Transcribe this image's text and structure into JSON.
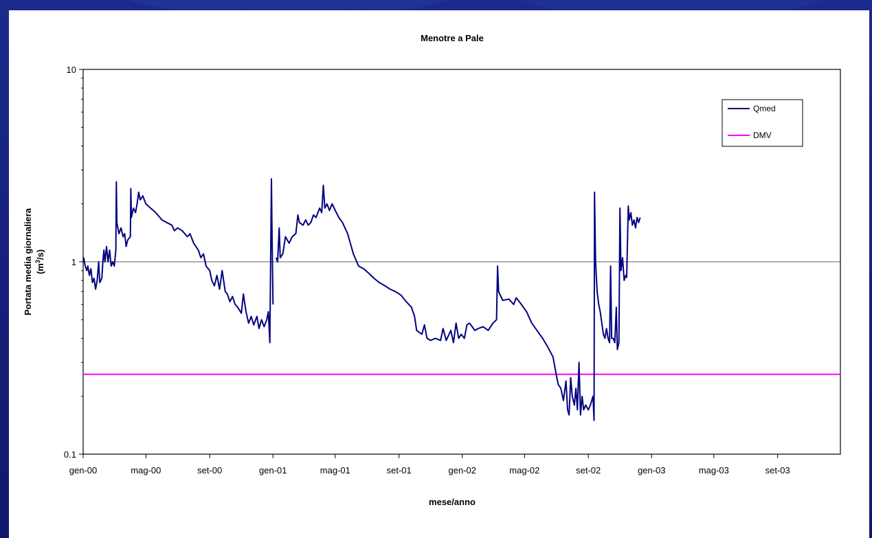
{
  "chart_data": {
    "type": "line",
    "title": "Menotre a Pale",
    "xlabel": "mese/anno",
    "ylabel_line1": "Portata media giornaliera",
    "ylabel_line2": "(m3/s)",
    "y_scale": "log",
    "ylim": [
      0.1,
      10
    ],
    "y_ticks": [
      {
        "value": 0.1,
        "label": "0.1"
      },
      {
        "value": 1,
        "label": "1"
      },
      {
        "value": 10,
        "label": "10"
      }
    ],
    "xlim": [
      "2000-01-01",
      "2003-12-31"
    ],
    "x_ticks": [
      {
        "date": "2000-01-01",
        "label": "gen-00"
      },
      {
        "date": "2000-05-01",
        "label": "mag-00"
      },
      {
        "date": "2000-09-01",
        "label": "set-00"
      },
      {
        "date": "2001-01-01",
        "label": "gen-01"
      },
      {
        "date": "2001-05-01",
        "label": "mag-01"
      },
      {
        "date": "2001-09-01",
        "label": "set-01"
      },
      {
        "date": "2002-01-01",
        "label": "gen-02"
      },
      {
        "date": "2002-05-01",
        "label": "mag-02"
      },
      {
        "date": "2002-09-01",
        "label": "set-02"
      },
      {
        "date": "2003-01-01",
        "label": "gen-03"
      },
      {
        "date": "2003-05-01",
        "label": "mag-03"
      },
      {
        "date": "2003-09-01",
        "label": "set-03"
      }
    ],
    "grid": "horizontal gridline at 1",
    "legend_position": "top-right",
    "series": [
      {
        "name": "Qmed",
        "color": "#000080",
        "points": [
          [
            "2000-01-01",
            1.0
          ],
          [
            "2000-01-02",
            1.05
          ],
          [
            "2000-01-05",
            0.95
          ],
          [
            "2000-01-08",
            0.9
          ],
          [
            "2000-01-10",
            0.95
          ],
          [
            "2000-01-13",
            0.85
          ],
          [
            "2000-01-16",
            0.92
          ],
          [
            "2000-01-19",
            0.78
          ],
          [
            "2000-01-22",
            0.82
          ],
          [
            "2000-01-25",
            0.72
          ],
          [
            "2000-01-28",
            0.8
          ],
          [
            "2000-01-31",
            1.0
          ],
          [
            "2000-02-02",
            0.78
          ],
          [
            "2000-02-06",
            0.82
          ],
          [
            "2000-02-08",
            1.0
          ],
          [
            "2000-02-10",
            1.15
          ],
          [
            "2000-02-12",
            1.0
          ],
          [
            "2000-02-15",
            1.2
          ],
          [
            "2000-02-18",
            1.0
          ],
          [
            "2000-02-21",
            1.15
          ],
          [
            "2000-02-24",
            0.95
          ],
          [
            "2000-02-27",
            1.0
          ],
          [
            "2000-03-01",
            0.95
          ],
          [
            "2000-03-04",
            1.15
          ],
          [
            "2000-03-05",
            2.6
          ],
          [
            "2000-03-06",
            1.6
          ],
          [
            "2000-03-10",
            1.4
          ],
          [
            "2000-03-14",
            1.5
          ],
          [
            "2000-03-18",
            1.35
          ],
          [
            "2000-03-21",
            1.4
          ],
          [
            "2000-03-24",
            1.2
          ],
          [
            "2000-03-27",
            1.3
          ],
          [
            "2000-04-01",
            1.35
          ],
          [
            "2000-04-02",
            2.4
          ],
          [
            "2000-04-03",
            1.7
          ],
          [
            "2000-04-07",
            1.9
          ],
          [
            "2000-04-11",
            1.8
          ],
          [
            "2000-04-14",
            2.0
          ],
          [
            "2000-04-17",
            2.3
          ],
          [
            "2000-04-20",
            2.1
          ],
          [
            "2000-04-25",
            2.2
          ],
          [
            "2000-05-01",
            2.0
          ],
          [
            "2000-05-10",
            1.9
          ],
          [
            "2000-05-20",
            1.8
          ],
          [
            "2000-06-01",
            1.65
          ],
          [
            "2000-06-10",
            1.6
          ],
          [
            "2000-06-20",
            1.55
          ],
          [
            "2000-06-25",
            1.45
          ],
          [
            "2000-07-01",
            1.5
          ],
          [
            "2000-07-10",
            1.45
          ],
          [
            "2000-07-20",
            1.35
          ],
          [
            "2000-07-25",
            1.4
          ],
          [
            "2000-08-01",
            1.25
          ],
          [
            "2000-08-10",
            1.15
          ],
          [
            "2000-08-15",
            1.05
          ],
          [
            "2000-08-20",
            1.1
          ],
          [
            "2000-08-25",
            0.95
          ],
          [
            "2000-09-01",
            0.9
          ],
          [
            "2000-09-05",
            0.8
          ],
          [
            "2000-09-10",
            0.75
          ],
          [
            "2000-09-15",
            0.85
          ],
          [
            "2000-09-20",
            0.72
          ],
          [
            "2000-09-25",
            0.9
          ],
          [
            "2000-10-01",
            0.7
          ],
          [
            "2000-10-05",
            0.68
          ],
          [
            "2000-10-10",
            0.62
          ],
          [
            "2000-10-15",
            0.66
          ],
          [
            "2000-10-20",
            0.6
          ],
          [
            "2000-10-25",
            0.58
          ],
          [
            "2000-11-01",
            0.54
          ],
          [
            "2000-11-05",
            0.68
          ],
          [
            "2000-11-10",
            0.55
          ],
          [
            "2000-11-15",
            0.48
          ],
          [
            "2000-11-20",
            0.52
          ],
          [
            "2000-11-25",
            0.47
          ],
          [
            "2000-12-01",
            0.52
          ],
          [
            "2000-12-05",
            0.45
          ],
          [
            "2000-12-10",
            0.5
          ],
          [
            "2000-12-15",
            0.46
          ],
          [
            "2000-12-20",
            0.5
          ],
          [
            "2000-12-23",
            0.55
          ],
          [
            "2000-12-26",
            0.38
          ],
          [
            "2000-12-29",
            2.7
          ],
          [
            "2000-12-30",
            1.6
          ],
          [
            "2001-01-01",
            0.6
          ],
          [
            "2001-01-06",
            null
          ],
          [
            "2001-01-07",
            1.05
          ],
          [
            "2001-01-10",
            1.0
          ],
          [
            "2001-01-13",
            1.5
          ],
          [
            "2001-01-15",
            1.05
          ],
          [
            "2001-01-20",
            1.1
          ],
          [
            "2001-01-25",
            1.35
          ],
          [
            "2001-02-01",
            1.25
          ],
          [
            "2001-02-07",
            1.35
          ],
          [
            "2001-02-14",
            1.4
          ],
          [
            "2001-02-18",
            1.75
          ],
          [
            "2001-02-21",
            1.6
          ],
          [
            "2001-02-28",
            1.55
          ],
          [
            "2001-03-05",
            1.65
          ],
          [
            "2001-03-10",
            1.55
          ],
          [
            "2001-03-15",
            1.6
          ],
          [
            "2001-03-20",
            1.75
          ],
          [
            "2001-03-25",
            1.7
          ],
          [
            "2001-04-01",
            1.9
          ],
          [
            "2001-04-05",
            1.8
          ],
          [
            "2001-04-08",
            2.5
          ],
          [
            "2001-04-11",
            1.9
          ],
          [
            "2001-04-15",
            2.0
          ],
          [
            "2001-04-20",
            1.85
          ],
          [
            "2001-04-25",
            2.0
          ],
          [
            "2001-05-01",
            1.85
          ],
          [
            "2001-05-08",
            1.7
          ],
          [
            "2001-05-15",
            1.6
          ],
          [
            "2001-05-25",
            1.4
          ],
          [
            "2001-06-05",
            1.1
          ],
          [
            "2001-06-15",
            0.95
          ],
          [
            "2001-06-25",
            0.92
          ],
          [
            "2001-07-05",
            0.87
          ],
          [
            "2001-07-15",
            0.82
          ],
          [
            "2001-07-25",
            0.78
          ],
          [
            "2001-08-05",
            0.75
          ],
          [
            "2001-08-15",
            0.72
          ],
          [
            "2001-08-25",
            0.7
          ],
          [
            "2001-09-05",
            0.67
          ],
          [
            "2001-09-15",
            0.62
          ],
          [
            "2001-09-25",
            0.58
          ],
          [
            "2001-10-01",
            0.52
          ],
          [
            "2001-10-05",
            0.44
          ],
          [
            "2001-10-15",
            0.42
          ],
          [
            "2001-10-20",
            0.47
          ],
          [
            "2001-10-25",
            0.4
          ],
          [
            "2001-11-01",
            0.39
          ],
          [
            "2001-11-10",
            0.4
          ],
          [
            "2001-11-20",
            0.39
          ],
          [
            "2001-11-25",
            0.45
          ],
          [
            "2001-12-01",
            0.39
          ],
          [
            "2001-12-10",
            0.44
          ],
          [
            "2001-12-15",
            0.38
          ],
          [
            "2001-12-20",
            0.48
          ],
          [
            "2001-12-25",
            0.4
          ],
          [
            "2001-12-30",
            0.42
          ],
          [
            "2002-01-05",
            0.4
          ],
          [
            "2002-01-10",
            0.47
          ],
          [
            "2002-01-15",
            0.48
          ],
          [
            "2002-01-20",
            0.46
          ],
          [
            "2002-01-25",
            0.44
          ],
          [
            "2002-02-01",
            0.45
          ],
          [
            "2002-02-10",
            0.46
          ],
          [
            "2002-02-20",
            0.44
          ],
          [
            "2002-03-01",
            0.48
          ],
          [
            "2002-03-08",
            0.5
          ],
          [
            "2002-03-10",
            0.95
          ],
          [
            "2002-03-12",
            0.7
          ],
          [
            "2002-03-20",
            0.63
          ],
          [
            "2002-04-01",
            0.64
          ],
          [
            "2002-04-10",
            0.6
          ],
          [
            "2002-04-15",
            0.65
          ],
          [
            "2002-04-25",
            0.6
          ],
          [
            "2002-05-05",
            0.55
          ],
          [
            "2002-05-15",
            0.48
          ],
          [
            "2002-05-25",
            0.44
          ],
          [
            "2002-06-05",
            0.4
          ],
          [
            "2002-06-15",
            0.36
          ],
          [
            "2002-06-25",
            0.32
          ],
          [
            "2002-07-01",
            0.26
          ],
          [
            "2002-07-05",
            0.23
          ],
          [
            "2002-07-10",
            0.22
          ],
          [
            "2002-07-15",
            0.19
          ],
          [
            "2002-07-20",
            0.24
          ],
          [
            "2002-07-23",
            0.17
          ],
          [
            "2002-07-26",
            0.16
          ],
          [
            "2002-07-29",
            0.25
          ],
          [
            "2002-08-01",
            0.2
          ],
          [
            "2002-08-05",
            0.18
          ],
          [
            "2002-08-08",
            0.22
          ],
          [
            "2002-08-11",
            0.17
          ],
          [
            "2002-08-14",
            0.3
          ],
          [
            "2002-08-17",
            0.16
          ],
          [
            "2002-08-20",
            0.2
          ],
          [
            "2002-08-23",
            0.17
          ],
          [
            "2002-08-27",
            0.18
          ],
          [
            "2002-09-01",
            0.17
          ],
          [
            "2002-09-05",
            0.18
          ],
          [
            "2002-09-10",
            0.2
          ],
          [
            "2002-09-12",
            0.15
          ],
          [
            "2002-09-13",
            2.3
          ],
          [
            "2002-09-15",
            1.0
          ],
          [
            "2002-09-18",
            0.7
          ],
          [
            "2002-09-21",
            0.6
          ],
          [
            "2002-09-24",
            0.55
          ],
          [
            "2002-09-27",
            0.48
          ],
          [
            "2002-09-30",
            0.42
          ],
          [
            "2002-10-03",
            0.4
          ],
          [
            "2002-10-06",
            0.45
          ],
          [
            "2002-10-09",
            0.4
          ],
          [
            "2002-10-12",
            0.38
          ],
          [
            "2002-10-14",
            0.95
          ],
          [
            "2002-10-16",
            0.4
          ],
          [
            "2002-10-19",
            0.4
          ],
          [
            "2002-10-22",
            0.38
          ],
          [
            "2002-10-25",
            0.58
          ],
          [
            "2002-10-27",
            0.35
          ],
          [
            "2002-10-30",
            0.38
          ],
          [
            "2002-11-01",
            1.9
          ],
          [
            "2002-11-03",
            0.9
          ],
          [
            "2002-11-06",
            1.05
          ],
          [
            "2002-11-09",
            0.8
          ],
          [
            "2002-11-12",
            0.85
          ],
          [
            "2002-11-14",
            0.83
          ],
          [
            "2002-11-17",
            1.95
          ],
          [
            "2002-11-19",
            1.65
          ],
          [
            "2002-11-22",
            1.8
          ],
          [
            "2002-11-25",
            1.55
          ],
          [
            "2002-11-28",
            1.65
          ],
          [
            "2002-12-01",
            1.5
          ],
          [
            "2002-12-04",
            1.7
          ],
          [
            "2002-12-07",
            1.6
          ],
          [
            "2002-12-10",
            1.7
          ]
        ]
      },
      {
        "name": "DMV",
        "color": "#ff00ff",
        "points": [
          [
            "2000-01-01",
            0.26
          ],
          [
            "2003-12-31",
            0.26
          ]
        ]
      }
    ]
  }
}
